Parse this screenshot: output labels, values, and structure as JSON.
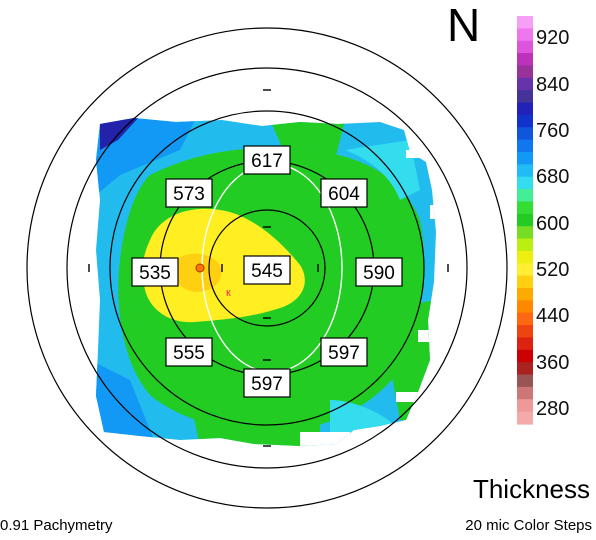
{
  "orientation_label": "N",
  "map_title": "Thickness",
  "left_caption": "0.91 Pachymetry",
  "right_caption": "20 mic Color Steps",
  "central_value": "545",
  "inner_ring_values": [
    {
      "pos": "top",
      "value": "617"
    },
    {
      "pos": "upper-left",
      "value": "573"
    },
    {
      "pos": "upper-right",
      "value": "604"
    },
    {
      "pos": "left",
      "value": "535"
    },
    {
      "pos": "right",
      "value": "590"
    },
    {
      "pos": "lower-left",
      "value": "555"
    },
    {
      "pos": "lower-right",
      "value": "597"
    },
    {
      "pos": "bottom",
      "value": "597"
    }
  ],
  "scale_labels": [
    "920",
    "840",
    "760",
    "680",
    "600",
    "520",
    "440",
    "360",
    "280"
  ],
  "scale_colors": [
    "#f5a0f5",
    "#ee77ee",
    "#dd55dd",
    "#bb33bb",
    "#993399",
    "#6633aa",
    "#443399",
    "#2222bb",
    "#1133cc",
    "#1155dd",
    "#1177ee",
    "#1199f5",
    "#22bbf5",
    "#33ddee",
    "#44ee99",
    "#33dd33",
    "#22cc22",
    "#77dd22",
    "#bbee11",
    "#eeee11",
    "#ffee33",
    "#ffd011",
    "#ffaa00",
    "#ff8800",
    "#ff6611",
    "#ee4411",
    "#dd2211",
    "#cc0000",
    "#aa2222",
    "#995555",
    "#cc7777",
    "#ee9999",
    "#f4aaaa"
  ],
  "colors": {
    "thin": "#ffee22",
    "mid": "#22cc22",
    "thick": "#33ddee",
    "thicker": "#1199f5",
    "thickest": "#2222aa"
  }
}
